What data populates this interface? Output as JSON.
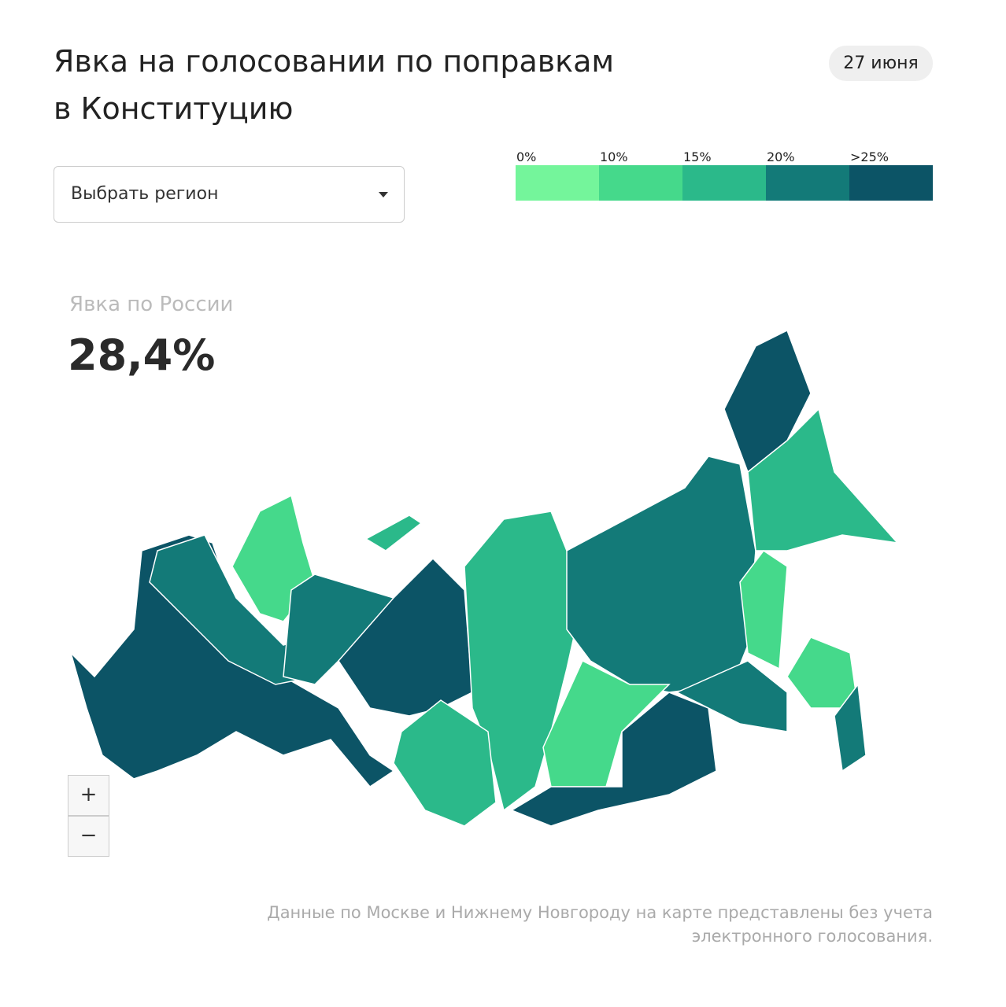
{
  "header": {
    "title_lines": [
      "Явка на голосовании по поправкам",
      "в Конституцию"
    ],
    "date": "27 июня"
  },
  "region_select": {
    "placeholder": "Выбрать регион"
  },
  "legend": {
    "items": [
      {
        "label": "0%",
        "color": "#74f59b"
      },
      {
        "label": "10%",
        "color": "#45d98b"
      },
      {
        "label": "15%",
        "color": "#2bb98a"
      },
      {
        "label": "20%",
        "color": "#137a78"
      },
      {
        "label": ">25%",
        "color": "#0c5466"
      }
    ]
  },
  "overall": {
    "label": "Явка по России",
    "value": "28,4%"
  },
  "zoom": {
    "in": "+",
    "out": "−"
  },
  "note_lines": [
    "Данные по Москве и Нижнему Новгороду на карте представлены без учета",
    "электронного голосования."
  ]
}
